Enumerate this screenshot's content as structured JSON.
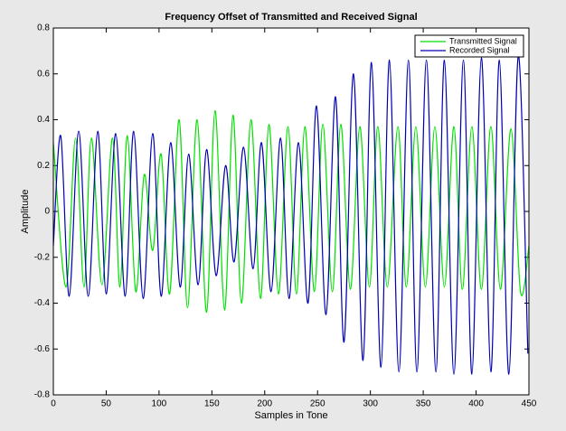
{
  "chart_data": {
    "type": "line",
    "title": "Frequency Offset of Transmitted and Received Signal",
    "x_label": "Samples in Tone",
    "y_label": "Amplitude",
    "xlim": [
      0,
      450
    ],
    "xticks": [
      0,
      50,
      100,
      150,
      200,
      250,
      300,
      350,
      400,
      450
    ],
    "ylim": [
      -0.8,
      0.8
    ],
    "yticks": [
      -0.8,
      -0.6,
      -0.4,
      -0.2,
      0,
      0.2,
      0.4,
      0.6,
      0.8
    ],
    "legend": "upper right",
    "series": [
      {
        "name": "Transmitted Signal",
        "color": "#00e000",
        "x": [
          0,
          12,
          21,
          29,
          36,
          46,
          56,
          63,
          70,
          78,
          86,
          94,
          102,
          110,
          119,
          127,
          136,
          145,
          153,
          162,
          170,
          178,
          187,
          196,
          204,
          213,
          222,
          230,
          238,
          247,
          255,
          264,
          272,
          281,
          290,
          299,
          307,
          316,
          326,
          334,
          343,
          352,
          361,
          370,
          379,
          387,
          396,
          405,
          414,
          423,
          433,
          442,
          450
        ],
        "values": [
          0.3,
          -0.33,
          0.32,
          -0.33,
          0.32,
          -0.32,
          0.32,
          -0.33,
          0.33,
          -0.35,
          0.16,
          -0.17,
          0.25,
          -0.36,
          0.4,
          -0.42,
          0.4,
          -0.44,
          0.44,
          -0.43,
          0.42,
          -0.4,
          0.4,
          -0.38,
          0.38,
          -0.36,
          0.37,
          -0.36,
          0.37,
          -0.35,
          0.38,
          -0.35,
          0.38,
          -0.34,
          0.37,
          -0.33,
          0.37,
          -0.33,
          0.37,
          -0.33,
          0.37,
          -0.33,
          0.37,
          -0.33,
          0.37,
          -0.34,
          0.37,
          -0.34,
          0.37,
          -0.34,
          0.36,
          -0.35,
          -0.15
        ]
      },
      {
        "name": "Recorded Signal",
        "color": "#0000b0",
        "x": [
          0,
          7,
          15,
          24,
          33,
          42,
          50,
          59,
          68,
          76,
          85,
          94,
          102,
          111,
          120,
          128,
          137,
          145,
          154,
          163,
          171,
          180,
          189,
          197,
          206,
          215,
          223,
          232,
          241,
          249,
          258,
          267,
          275,
          284,
          293,
          301,
          310,
          318,
          327,
          336,
          344,
          353,
          362,
          370,
          379,
          388,
          396,
          405,
          414,
          422,
          431,
          440,
          449
        ],
        "values": [
          -0.15,
          0.33,
          -0.37,
          0.35,
          -0.37,
          0.35,
          -0.36,
          0.34,
          -0.37,
          0.35,
          -0.38,
          0.34,
          -0.37,
          0.3,
          -0.33,
          0.25,
          -0.32,
          0.27,
          -0.28,
          0.2,
          -0.22,
          0.28,
          -0.25,
          0.3,
          -0.35,
          0.32,
          -0.38,
          0.3,
          -0.4,
          0.46,
          -0.45,
          0.5,
          -0.57,
          0.6,
          -0.65,
          0.65,
          -0.68,
          0.66,
          -0.7,
          0.66,
          -0.7,
          0.66,
          -0.7,
          0.66,
          -0.71,
          0.66,
          -0.71,
          0.67,
          -0.7,
          0.66,
          -0.71,
          0.68,
          -0.62
        ]
      }
    ]
  }
}
